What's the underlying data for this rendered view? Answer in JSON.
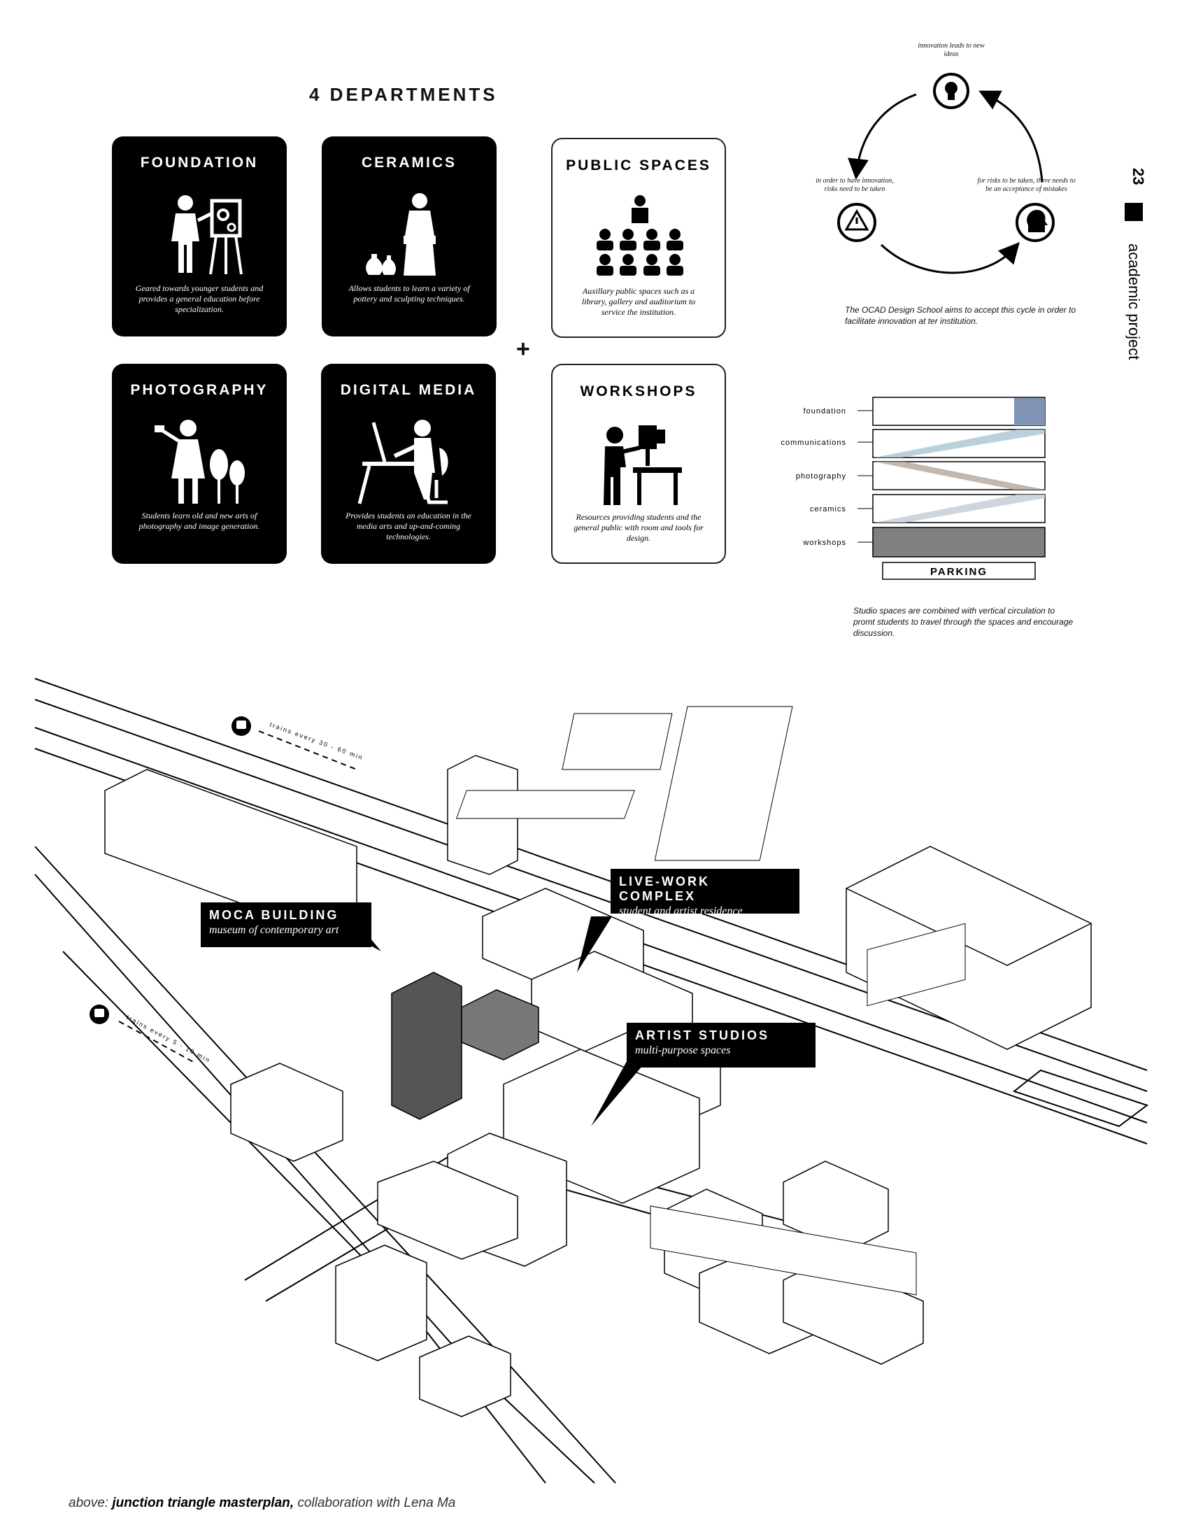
{
  "heading": "4 DEPARTMENTS",
  "plus": "+",
  "cards": [
    {
      "title": "FOUNDATION",
      "desc": "Geared towards younger students and provides a general education before specialization."
    },
    {
      "title": "CERAMICS",
      "desc": "Allows students to learn a variety of pottery and sculpting techniques."
    },
    {
      "title": "PUBLIC SPACES",
      "desc": "Auxillary public spaces such as a library, gallery and auditorium to service the institution."
    },
    {
      "title": "PHOTOGRAPHY",
      "desc": "Students learn old and new arts of photography and image generation."
    },
    {
      "title": "DIGITAL MEDIA",
      "desc": "Provides students an education in the media arts and up-and-coming technologies."
    },
    {
      "title": "WORKSHOPS",
      "desc": "Resources providing students and the general public with room and tools for design."
    }
  ],
  "cycle": {
    "top": "innovation leads to new ideas",
    "left": "in order to have innovation, risks need to be taken",
    "right": "for risks to be taken, there needs to be an acceptance of mistakes",
    "note": "The OCAD Design School aims to accept this cycle in order to facilitate innovation at ter institution."
  },
  "page": {
    "number": "23",
    "section": "academic project"
  },
  "section_chart": {
    "levels": [
      "foundation",
      "communications",
      "photography",
      "ceramics",
      "workshops"
    ],
    "base": "PARKING",
    "note": "Studio spaces are combined with vertical circulation to promt students to travel through the spaces and encourage discussion.",
    "colors": {
      "foundation": "#7f94b4",
      "communications": "#a9c4d4",
      "photography": "#b7aca2",
      "ceramics": "#c9d0d8",
      "workshops": "#808080"
    }
  },
  "map": {
    "train_top": "trains every 30 - 60 min",
    "train_left": "trains every 5 - 10 min",
    "callouts": [
      {
        "title": "LIVE-WORK COMPLEX",
        "sub": "student and artist residence"
      },
      {
        "title": "MOCA BUILDING",
        "sub": "museum of contemporary art"
      },
      {
        "title": "ARTIST STUDIOS",
        "sub": "multi-purpose spaces"
      }
    ]
  },
  "caption": {
    "prefix": "above: ",
    "bold": "junction triangle masterplan,",
    "suffix": " collaboration with Lena Ma"
  }
}
